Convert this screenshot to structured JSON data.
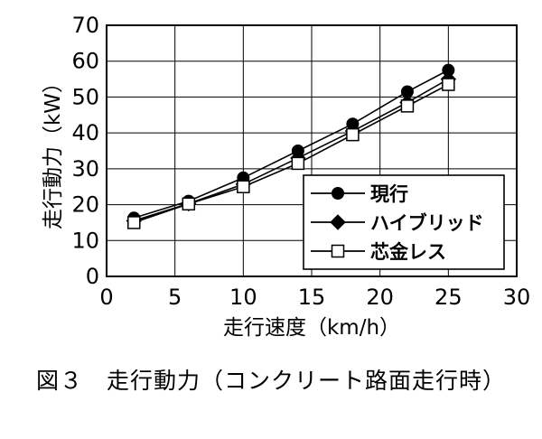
{
  "chart_data": {
    "type": "line",
    "title": "",
    "xlabel": "走行速度（km/h）",
    "ylabel": "走行動力（kW）",
    "xlim": [
      0,
      30
    ],
    "ylim": [
      0,
      70
    ],
    "xticks": [
      0,
      5,
      10,
      15,
      20,
      25,
      30
    ],
    "yticks": [
      0,
      10,
      20,
      30,
      40,
      50,
      60,
      70
    ],
    "grid": true,
    "legend_position": "bottom-right",
    "series": [
      {
        "name": "現行",
        "marker": "filled-circle",
        "x": [
          2,
          6,
          10,
          14,
          18,
          22,
          25
        ],
        "y": [
          16.3,
          21,
          27.5,
          35,
          42.5,
          51.5,
          57.5
        ]
      },
      {
        "name": "ハイブリッド",
        "marker": "filled-diamond",
        "x": [
          2,
          6,
          10,
          14,
          18,
          22,
          25
        ],
        "y": [
          15.5,
          20.3,
          25.7,
          33,
          40.5,
          48.5,
          55
        ]
      },
      {
        "name": "芯金レス",
        "marker": "open-square",
        "x": [
          2,
          6,
          10,
          14,
          18,
          22,
          25
        ],
        "y": [
          15,
          20.2,
          25,
          31.5,
          39.5,
          47.5,
          53.5
        ]
      }
    ]
  },
  "caption": "図３　走行動力（コンクリート路面走行時）"
}
